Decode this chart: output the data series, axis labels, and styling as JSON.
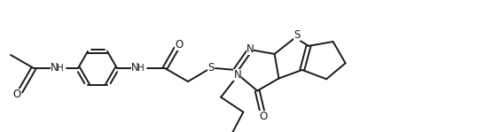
{
  "bg_color": "#ffffff",
  "line_color": "#1a1a1a",
  "line_width": 1.4,
  "font_size": 8.5,
  "figsize": [
    5.47,
    1.49
  ],
  "dpi": 100,
  "xlim": [
    0,
    5.47
  ],
  "ylim": [
    0,
    1.49
  ]
}
